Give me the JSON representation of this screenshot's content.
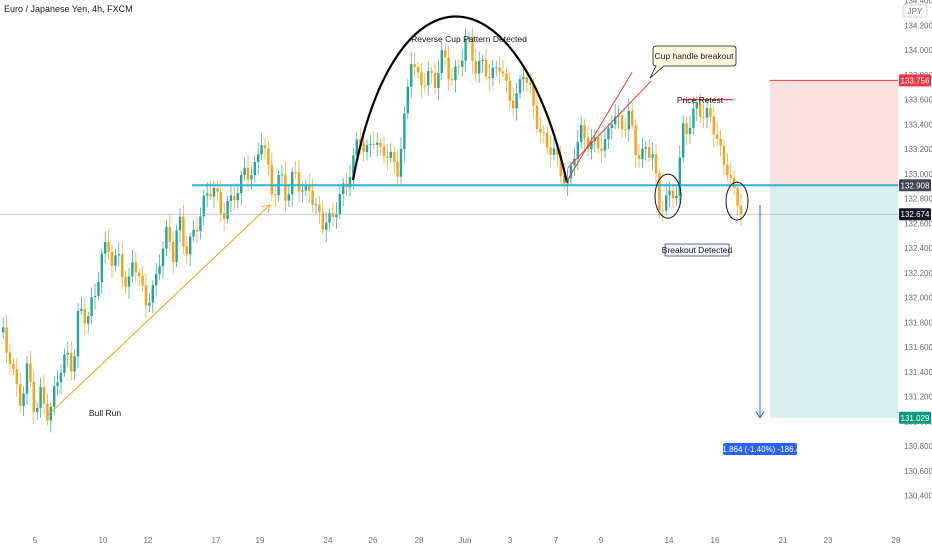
{
  "header": {
    "symbol": "Euro / Japanese Yen, 4h, FXCM"
  },
  "currency_badge": "JPY",
  "colors": {
    "up": "#26a69a",
    "down": "#f7a21b",
    "support": "#2cb2d5",
    "cup": "#000000",
    "channel": "#e53935",
    "bull_arrow": "#f7a21b",
    "target_fill": "#d8efee",
    "stop_fill": "#fde0e0",
    "price_label_current": "#131722",
    "price_label_stop": "#f23645",
    "price_label_target": "#089981",
    "price_label_entry": "#434651",
    "measure": "#2962ff"
  },
  "chart_data": {
    "type": "candlestick",
    "ylim": [
      130.3,
      134.5
    ],
    "y_ticks": [
      "134.400",
      "134.200",
      "134.000",
      "133.800",
      "133.600",
      "133.400",
      "133.200",
      "133.000",
      "132.800",
      "132.600",
      "132.400",
      "132.200",
      "132.000",
      "131.800",
      "131.600",
      "131.400",
      "131.200",
      "131.000",
      "130.800",
      "130.600",
      "130.400"
    ],
    "x_ticks": [
      "5",
      "10",
      "12",
      "17",
      "19",
      "24",
      "26",
      "28",
      "Jun",
      "3",
      "7",
      "9",
      "14",
      "16",
      "21",
      "23",
      "28"
    ],
    "price_labels": {
      "stop": "133.756",
      "entry": "132.908",
      "current": "132.674",
      "target": "131.029"
    },
    "measure_label": "-1.864 (-1.40%) -186.4",
    "annotations": {
      "cup": "Reverse Cup Pattern Detected",
      "handle": "Cup handle breakout",
      "retest": "Price Retest",
      "breakout": "Breakout Detected",
      "bull": "Bull Run"
    },
    "levels": {
      "support": 132.908,
      "current": 132.674,
      "retest_top": 133.6,
      "stop": 133.756,
      "target": 131.029
    },
    "anchors": [
      [
        0,
        131.72
      ],
      [
        6,
        131.55
      ],
      [
        10,
        131.55
      ],
      [
        14,
        131.35
      ],
      [
        20,
        131.15
      ],
      [
        26,
        131.38
      ],
      [
        34,
        131.05
      ],
      [
        40,
        131.28
      ],
      [
        48,
        131.05
      ],
      [
        58,
        131.35
      ],
      [
        66,
        131.55
      ],
      [
        72,
        131.48
      ],
      [
        78,
        131.95
      ],
      [
        86,
        131.75
      ],
      [
        94,
        132.05
      ],
      [
        100,
        132.35
      ],
      [
        106,
        132.5
      ],
      [
        112,
        132.2
      ],
      [
        118,
        132.3
      ],
      [
        126,
        132.05
      ],
      [
        132,
        132.4
      ],
      [
        140,
        132.05
      ],
      [
        146,
        131.9
      ],
      [
        152,
        132.05
      ],
      [
        158,
        132.35
      ],
      [
        166,
        132.55
      ],
      [
        172,
        132.3
      ],
      [
        178,
        132.6
      ],
      [
        184,
        132.4
      ],
      [
        192,
        132.55
      ],
      [
        200,
        132.65
      ],
      [
        208,
        132.85
      ],
      [
        214,
        132.9
      ],
      [
        222,
        132.7
      ],
      [
        230,
        132.75
      ],
      [
        238,
        132.85
      ],
      [
        244,
        133.1
      ],
      [
        252,
        133.0
      ],
      [
        260,
        133.25
      ],
      [
        266,
        133.05
      ],
      [
        272,
        132.85
      ],
      [
        280,
        133.05
      ],
      [
        286,
        132.75
      ],
      [
        294,
        133.0
      ],
      [
        300,
        132.85
      ],
      [
        308,
        132.95
      ],
      [
        314,
        132.7
      ],
      [
        322,
        132.55
      ],
      [
        330,
        132.65
      ],
      [
        338,
        132.85
      ],
      [
        346,
        132.9
      ],
      [
        352,
        133.05
      ],
      [
        358,
        133.35
      ],
      [
        364,
        133.2
      ],
      [
        372,
        133.3
      ],
      [
        380,
        133.1
      ],
      [
        388,
        133.2
      ],
      [
        396,
        133.05
      ],
      [
        404,
        133.45
      ],
      [
        410,
        133.9
      ],
      [
        418,
        133.75
      ],
      [
        426,
        133.85
      ],
      [
        434,
        133.7
      ],
      [
        442,
        133.95
      ],
      [
        450,
        133.8
      ],
      [
        458,
        133.9
      ],
      [
        466,
        134.05
      ],
      [
        474,
        133.85
      ],
      [
        482,
        133.95
      ],
      [
        490,
        133.75
      ],
      [
        498,
        133.85
      ],
      [
        506,
        133.7
      ],
      [
        514,
        133.6
      ],
      [
        522,
        133.8
      ],
      [
        530,
        133.6
      ],
      [
        538,
        133.4
      ],
      [
        546,
        133.25
      ],
      [
        554,
        133.1
      ],
      [
        560,
        133.0
      ],
      [
        566,
        132.93
      ],
      [
        572,
        133.2
      ],
      [
        580,
        133.3
      ],
      [
        588,
        133.2
      ],
      [
        596,
        133.3
      ],
      [
        604,
        133.25
      ],
      [
        612,
        133.45
      ],
      [
        620,
        133.35
      ],
      [
        628,
        133.55
      ],
      [
        634,
        133.2
      ],
      [
        640,
        133.1
      ],
      [
        646,
        133.15
      ],
      [
        652,
        133.2
      ],
      [
        658,
        132.75
      ],
      [
        664,
        132.82
      ],
      [
        670,
        132.75
      ],
      [
        676,
        132.85
      ],
      [
        682,
        133.4
      ],
      [
        690,
        133.45
      ],
      [
        696,
        133.55
      ],
      [
        702,
        133.4
      ],
      [
        710,
        133.5
      ],
      [
        716,
        133.3
      ],
      [
        722,
        133.15
      ],
      [
        730,
        132.85
      ],
      [
        736,
        132.8
      ],
      [
        742,
        132.65
      ]
    ]
  }
}
